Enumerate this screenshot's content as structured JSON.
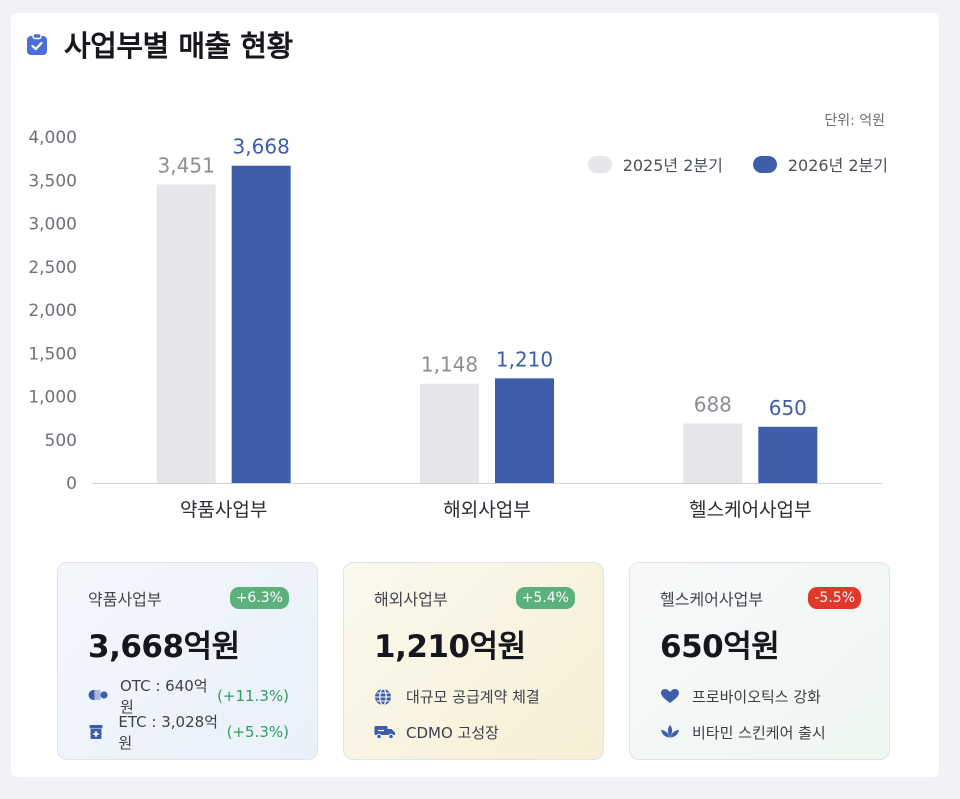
{
  "header": {
    "title": "사업부별 매출 현황",
    "unit": "단위: 억원"
  },
  "colors": {
    "prev": "#e5e6ea",
    "curr": "#3f5ea9",
    "up": "#5cb07c",
    "down": "#e0382b"
  },
  "chart_data": {
    "type": "bar",
    "title": "사업부별 매출 현황",
    "categories": [
      "약품사업부",
      "해외사업부",
      "헬스케어사업부"
    ],
    "series": [
      {
        "name": "2025년 2분기",
        "values": [
          3451,
          1148,
          688
        ],
        "labels": [
          "3,451",
          "1,148",
          "688"
        ]
      },
      {
        "name": "2026년 2분기",
        "values": [
          3668,
          1210,
          650
        ],
        "labels": [
          "3,668",
          "1,210",
          "650"
        ]
      }
    ],
    "yticks": [
      "0",
      "500",
      "1,000",
      "1,500",
      "2,000",
      "2,500",
      "3,000",
      "3,500",
      "4,000"
    ],
    "ylim": [
      0,
      4000
    ],
    "xlabel": "",
    "ylabel": "",
    "grid": false,
    "legend": "top-right"
  },
  "kpis": [
    {
      "name": "약품사업부",
      "badge": "+6.3%",
      "trend": "up",
      "value": "3,668억원",
      "rows": [
        {
          "icon": "pill-icon",
          "text": "OTC : 640억원",
          "change": "(+11.3%)"
        },
        {
          "icon": "medicine-box-icon",
          "text": "ETC : 3,028억원",
          "change": "(+5.3%)"
        }
      ]
    },
    {
      "name": "해외사업부",
      "badge": "+5.4%",
      "trend": "up",
      "value": "1,210억원",
      "rows": [
        {
          "icon": "globe-icon",
          "text": "대규모 공급계약 체결",
          "change": ""
        },
        {
          "icon": "truck-icon",
          "text": "CDMO 고성장",
          "change": ""
        }
      ]
    },
    {
      "name": "헬스케어사업부",
      "badge": "-5.5%",
      "trend": "down",
      "value": "650억원",
      "rows": [
        {
          "icon": "heart-icon",
          "text": "프로바이오틱스 강화",
          "change": ""
        },
        {
          "icon": "lotus-icon",
          "text": "비타민 스킨케어 출시",
          "change": ""
        }
      ]
    }
  ]
}
